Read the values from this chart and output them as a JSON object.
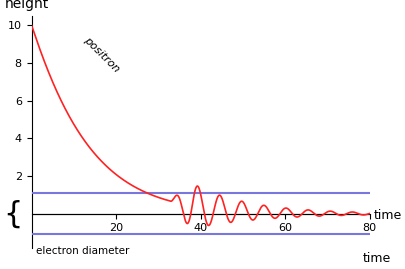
{
  "title": "",
  "xlabel": "time",
  "ylabel": "height",
  "xlim": [
    0,
    80
  ],
  "ylim": [
    -1.8,
    10.5
  ],
  "xticks": [
    20,
    40,
    60,
    80
  ],
  "yticks": [
    2,
    4,
    6,
    8,
    10
  ],
  "blue_line_upper": 1.1,
  "blue_line_lower": -1.1,
  "positron_label": "positron",
  "electron_diameter_label": "electron diameter",
  "bg_color": "#ffffff",
  "line_color": "#ff2222",
  "blue_color": "#7777dd",
  "axis_color": "#000000",
  "label_color": "#000000"
}
